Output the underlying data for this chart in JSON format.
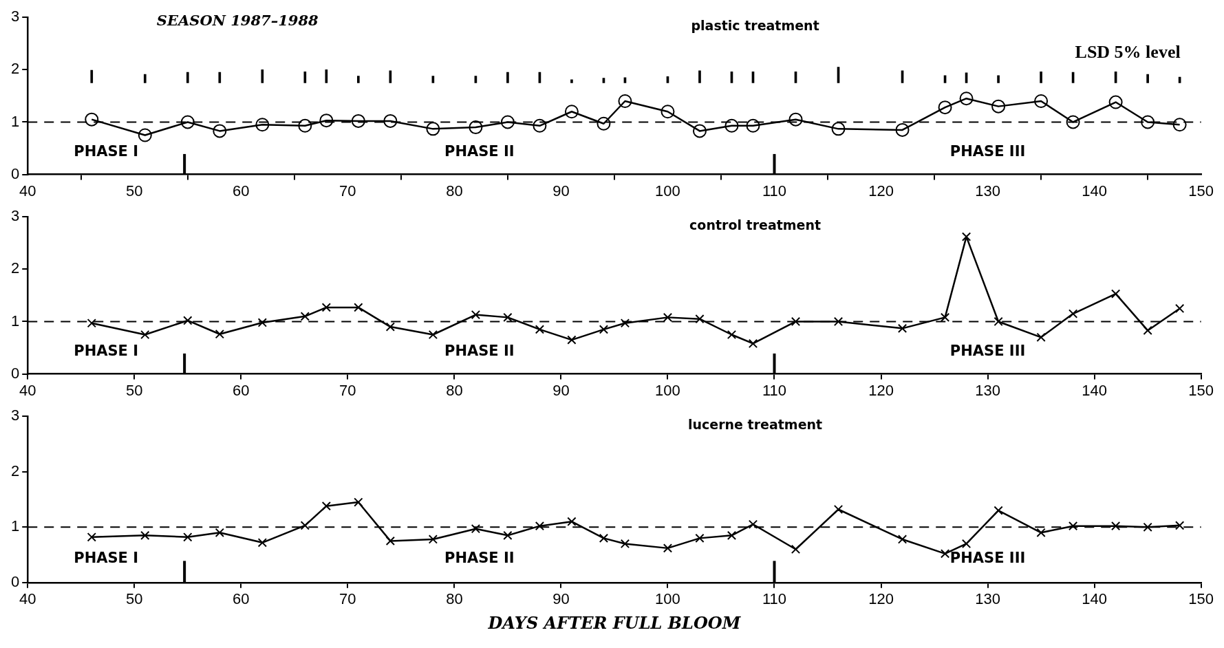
{
  "chart_data": [
    {
      "type": "line",
      "title": "plastic treatment",
      "annotations": [
        "SEASON 1987–1988",
        "PHASE I",
        "PHASE II",
        "PHASE III"
      ],
      "x": [
        46,
        51,
        55,
        58,
        62,
        66,
        68,
        71,
        74,
        78,
        82,
        85,
        88,
        91,
        94,
        96,
        100,
        103,
        106,
        108,
        112,
        116,
        122,
        126,
        128,
        131,
        135,
        138,
        142,
        145,
        148
      ],
      "series": [
        {
          "type": "bar",
          "name": "LSD 5% level",
          "color": "#000000",
          "base": [
            1.75,
            1.75,
            1.75,
            1.75,
            1.75,
            1.75,
            1.75,
            1.75,
            1.75,
            1.75,
            1.75,
            1.75,
            1.75,
            1.75,
            1.75,
            1.75,
            1.75,
            1.75,
            1.75,
            1.75,
            1.75,
            1.75,
            1.75,
            1.75,
            1.75,
            1.75,
            1.75,
            1.75,
            1.75,
            1.75,
            1.75
          ],
          "values": [
            0.24,
            0.16,
            0.2,
            0.2,
            0.25,
            0.21,
            0.25,
            0.13,
            0.23,
            0.13,
            0.13,
            0.2,
            0.2,
            0.06,
            0.09,
            0.1,
            0.12,
            0.23,
            0.21,
            0.21,
            0.21,
            0.3,
            0.23,
            0.14,
            0.19,
            0.14,
            0.21,
            0.2,
            0.21,
            0.16,
            0.11
          ]
        },
        {
          "color": "#000000",
          "marker": "circle",
          "values": [
            1.05,
            0.75,
            1.0,
            0.83,
            0.95,
            0.93,
            1.03,
            1.02,
            1.02,
            0.87,
            0.9,
            1.0,
            0.93,
            1.2,
            0.97,
            1.4,
            1.2,
            0.83,
            0.93,
            0.93,
            1.05,
            0.87,
            0.85,
            1.28,
            1.45,
            1.3,
            1.4,
            1.0,
            1.38,
            1.0,
            0.95
          ]
        }
      ],
      "ref_lines": [
        {
          "axis": "y",
          "value": 1,
          "line_style": "dashed"
        },
        {
          "axis": "x",
          "value": 54.7
        },
        {
          "axis": "x",
          "value": 110
        }
      ],
      "xlim": [
        40,
        150
      ],
      "xticks": [
        40,
        50,
        60,
        70,
        80,
        90,
        100,
        110,
        120,
        130,
        140,
        150
      ],
      "ylim": [
        0,
        3
      ],
      "yticks": [
        0,
        1,
        2,
        3
      ],
      "grid": false,
      "legend": false,
      "line_style": "solid"
    },
    {
      "type": "line",
      "title": "control treatment",
      "annotations": [
        "PHASE I",
        "PHASE II",
        "PHASE III"
      ],
      "x": [
        46,
        51,
        55,
        58,
        62,
        66,
        68,
        71,
        74,
        78,
        82,
        85,
        88,
        91,
        94,
        96,
        100,
        103,
        106,
        108,
        112,
        116,
        122,
        126,
        128,
        131,
        135,
        138,
        142,
        145,
        148
      ],
      "series": [
        {
          "color": "#000000",
          "marker": "cross",
          "values": [
            0.97,
            0.75,
            1.02,
            0.76,
            0.98,
            1.1,
            1.27,
            1.27,
            0.9,
            0.75,
            1.13,
            1.08,
            0.85,
            0.65,
            0.85,
            0.97,
            1.08,
            1.05,
            0.75,
            0.58,
            1.0,
            1.0,
            0.87,
            1.08,
            2.62,
            1.0,
            0.7,
            1.15,
            1.53,
            0.83,
            1.25
          ]
        }
      ],
      "ref_lines": [
        {
          "axis": "y",
          "value": 1,
          "line_style": "dashed"
        },
        {
          "axis": "x",
          "value": 54.7
        },
        {
          "axis": "x",
          "value": 110
        }
      ],
      "xlim": [
        40,
        150
      ],
      "xticks": [
        40,
        50,
        60,
        70,
        80,
        90,
        100,
        110,
        120,
        130,
        140,
        150
      ],
      "ylim": [
        0,
        3
      ],
      "yticks": [
        0,
        1,
        2,
        3
      ],
      "grid": false,
      "legend": false,
      "line_style": "solid"
    },
    {
      "type": "line",
      "title": "lucerne treatment",
      "xlabel": "DAYS AFTER FULL BLOOM",
      "annotations": [
        "PHASE I",
        "PHASE II",
        "PHASE III"
      ],
      "x": [
        46,
        51,
        55,
        58,
        62,
        66,
        68,
        71,
        74,
        78,
        82,
        85,
        88,
        91,
        94,
        96,
        100,
        103,
        106,
        108,
        112,
        116,
        122,
        126,
        128,
        131,
        135,
        138,
        142,
        145,
        148
      ],
      "series": [
        {
          "color": "#000000",
          "marker": "cross",
          "values": [
            0.82,
            0.85,
            0.82,
            0.9,
            0.72,
            1.03,
            1.38,
            1.45,
            0.75,
            0.78,
            0.97,
            0.85,
            1.02,
            1.1,
            0.8,
            0.7,
            0.62,
            0.8,
            0.85,
            1.05,
            0.6,
            1.32,
            0.78,
            0.52,
            0.7,
            1.3,
            0.9,
            1.02,
            1.02,
            1.0,
            1.03
          ]
        }
      ],
      "ref_lines": [
        {
          "axis": "y",
          "value": 1,
          "line_style": "dashed"
        },
        {
          "axis": "x",
          "value": 54.7
        },
        {
          "axis": "x",
          "value": 110
        }
      ],
      "xlim": [
        40,
        150
      ],
      "xticks": [
        40,
        50,
        60,
        70,
        80,
        90,
        100,
        110,
        120,
        130,
        140,
        150
      ],
      "ylim": [
        0,
        3
      ],
      "yticks": [
        0,
        1,
        2,
        3
      ],
      "grid": false,
      "legend": false,
      "line_style": "solid"
    }
  ]
}
